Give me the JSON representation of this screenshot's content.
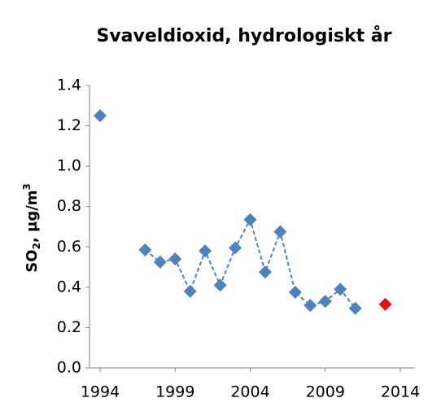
{
  "chart_data": {
    "type": "line",
    "title": "Svaveldioxid, hydrologiskt år",
    "y_label_parts": [
      "SO",
      "2",
      ", µg/m",
      "3"
    ],
    "series": [
      {
        "color": "#4f81bd",
        "line_style": "dashed",
        "x": [
          1994,
          1995,
          1996,
          1997,
          1998,
          1999,
          2000,
          2001,
          2002,
          2003,
          2004,
          2005,
          2006,
          2007,
          2008,
          2009,
          2010,
          2011
        ],
        "values": [
          1.25,
          null,
          null,
          0.585,
          0.525,
          0.54,
          0.38,
          0.58,
          0.41,
          0.595,
          0.735,
          0.475,
          0.675,
          0.375,
          0.31,
          0.33,
          0.39,
          0.295
        ]
      },
      {
        "color": "#e0101a",
        "line_style": "none",
        "x": [
          2013
        ],
        "values": [
          0.315
        ]
      }
    ],
    "xlim": [
      1994,
      2014
    ],
    "ylim": [
      0,
      1.4
    ],
    "xticks": [
      1994,
      1999,
      2004,
      2009,
      2014
    ],
    "yticks": [
      {
        "value": 0,
        "label": "0.0"
      },
      0.2,
      0.4,
      0.6,
      0.8,
      {
        "value": 1,
        "label": "1.0"
      },
      1.2,
      1.4
    ]
  }
}
